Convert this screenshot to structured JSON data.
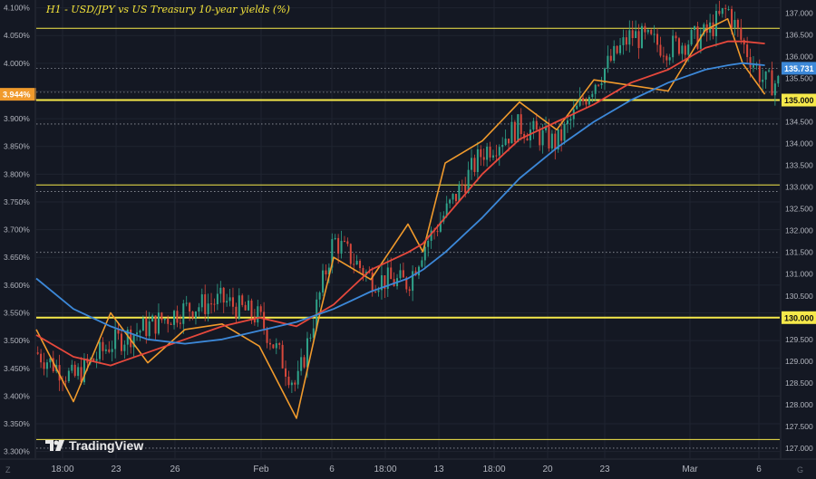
{
  "chart_data": {
    "type": "line",
    "title": "H1 - USD/JPY vs US Treasury 10-year yields (%)",
    "left_axis": {
      "unit": "%",
      "ticks": [
        "4.100%",
        "4.050%",
        "4.000%",
        "3.950%",
        "3.900%",
        "3.850%",
        "3.800%",
        "3.750%",
        "3.700%",
        "3.650%",
        "3.600%",
        "3.550%",
        "3.500%",
        "3.450%",
        "3.400%",
        "3.350%",
        "3.300%"
      ],
      "range": [
        3.288,
        4.114
      ],
      "current_value_label": "3.944%"
    },
    "right_axis": {
      "ticks": [
        "137.000",
        "136.500",
        "136.000",
        "135.500",
        "135.000",
        "134.500",
        "134.000",
        "133.500",
        "133.000",
        "132.500",
        "132.000",
        "131.500",
        "131.000",
        "130.500",
        "130.000",
        "129.500",
        "129.000",
        "128.500",
        "128.000",
        "127.500",
        "127.000"
      ],
      "range": [
        126.77,
        137.3
      ],
      "current_value_label": "135.731",
      "highlighted_levels": [
        "135.000",
        "130.000"
      ]
    },
    "x_axis": {
      "ticks": [
        "18:00",
        "23",
        "26",
        "Feb",
        "6",
        "18:00",
        "13",
        "18:00",
        "20",
        "23",
        "Mar",
        "6"
      ],
      "range": [
        0,
        100
      ]
    },
    "horizontal_lines": [
      {
        "scale": "right",
        "value": 136.65,
        "style": "thin"
      },
      {
        "scale": "right",
        "value": 135.0,
        "style": "thick"
      },
      {
        "scale": "right",
        "value": 133.05,
        "style": "thin"
      },
      {
        "scale": "right",
        "value": 130.0,
        "style": "thick"
      },
      {
        "scale": "right",
        "value": 127.2,
        "style": "thin"
      }
    ],
    "dotted_lines": [
      {
        "scale": "right",
        "value": 135.731
      },
      {
        "scale": "right",
        "value": 135.18
      },
      {
        "scale": "right",
        "value": 134.45
      },
      {
        "scale": "right",
        "value": 132.9
      },
      {
        "scale": "right",
        "value": 131.5
      },
      {
        "scale": "right",
        "value": 127.0
      }
    ],
    "series": [
      {
        "kind": "candles",
        "scale": "right",
        "color_up": "#2fa38a",
        "color_down": "#d8483c",
        "x": [
          0,
          5,
          10,
          15,
          20,
          25,
          30,
          35,
          40,
          45,
          50,
          52,
          55,
          60,
          65,
          70,
          75,
          80,
          85,
          90,
          93,
          95,
          98
        ],
        "y": [
          129.2,
          128.6,
          129.4,
          129.8,
          130.2,
          130.4,
          130.0,
          128.4,
          131.8,
          130.9,
          130.8,
          131.6,
          132.4,
          133.8,
          134.4,
          134.0,
          135.4,
          136.5,
          136.2,
          136.5,
          137.1,
          136.3,
          135.4
        ]
      },
      {
        "kind": "line",
        "scale": "left",
        "color": "#f09a2c",
        "x": [
          0,
          5,
          10,
          15,
          20,
          25,
          30,
          35,
          38,
          40,
          45,
          50,
          52,
          55,
          60,
          65,
          70,
          75,
          80,
          85,
          90,
          93,
          95,
          98
        ],
        "y": [
          3.52,
          3.39,
          3.55,
          3.46,
          3.52,
          3.53,
          3.49,
          3.36,
          3.54,
          3.65,
          3.61,
          3.71,
          3.66,
          3.82,
          3.86,
          3.93,
          3.88,
          3.97,
          3.96,
          3.95,
          4.06,
          4.08,
          4.0,
          3.944
        ]
      },
      {
        "kind": "line",
        "scale": "right",
        "color": "#e6483c",
        "x": [
          0,
          5,
          10,
          15,
          20,
          25,
          30,
          35,
          40,
          45,
          50,
          52,
          55,
          60,
          65,
          70,
          75,
          80,
          85,
          90,
          93,
          95,
          98
        ],
        "y": [
          129.6,
          129.1,
          128.9,
          129.2,
          129.5,
          129.8,
          130.0,
          129.8,
          130.3,
          131.1,
          131.5,
          131.7,
          132.3,
          133.3,
          134.1,
          134.5,
          134.9,
          135.4,
          135.7,
          136.2,
          136.35,
          136.35,
          136.3
        ]
      },
      {
        "kind": "line",
        "scale": "right",
        "color": "#3c88d8",
        "x": [
          0,
          5,
          10,
          15,
          20,
          25,
          30,
          35,
          40,
          45,
          50,
          52,
          55,
          60,
          65,
          70,
          75,
          80,
          85,
          90,
          93,
          95,
          98
        ],
        "y": [
          130.9,
          130.2,
          129.8,
          129.5,
          129.4,
          129.5,
          129.7,
          129.9,
          130.2,
          130.6,
          130.9,
          131.1,
          131.5,
          132.3,
          133.2,
          133.9,
          134.5,
          135.0,
          135.4,
          135.7,
          135.8,
          135.85,
          135.8
        ]
      }
    ]
  },
  "branding": {
    "logo_text": "TradingView",
    "corner_bottom_left": "Z",
    "corner_bottom_right": "G"
  },
  "colors": {
    "background": "#141823",
    "grid": "#1f2430",
    "level_line": "#f6e94a",
    "yield": "#f09a2c",
    "ma_red": "#e6483c",
    "ma_blue": "#3c88d8",
    "axis_text": "#b2b5be",
    "left_marker_bg": "#f09a2c",
    "right_marker_bg": "#3c88d8",
    "highlight_bg": "#f6e94a"
  }
}
